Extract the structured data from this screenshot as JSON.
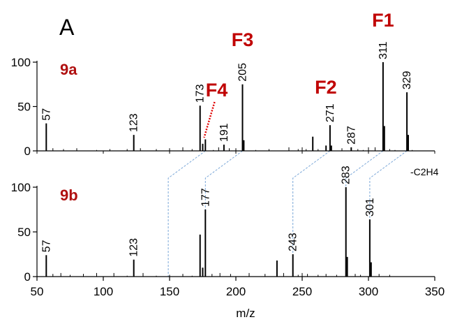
{
  "figure_label": "A",
  "chart_data": {
    "type": "bar",
    "xlabel": "m/z",
    "xlim": [
      50,
      355
    ],
    "x_ticks": [
      50,
      100,
      150,
      200,
      250,
      300,
      350
    ],
    "y_ticks": [
      0,
      50,
      100
    ],
    "ylim": [
      0,
      100
    ],
    "panels": [
      {
        "name": "9a",
        "peaks": [
          {
            "mz": 57,
            "intensity": 31,
            "label": "57"
          },
          {
            "mz": 123,
            "intensity": 18,
            "label": "123"
          },
          {
            "mz": 173,
            "intensity": 51,
            "label": "173"
          },
          {
            "mz": 175,
            "intensity": 8
          },
          {
            "mz": 177,
            "intensity": 13
          },
          {
            "mz": 191,
            "intensity": 7,
            "label": "191"
          },
          {
            "mz": 205,
            "intensity": 75,
            "label": "205"
          },
          {
            "mz": 206,
            "intensity": 12
          },
          {
            "mz": 258,
            "intensity": 16
          },
          {
            "mz": 268,
            "intensity": 6
          },
          {
            "mz": 271,
            "intensity": 29,
            "label": "271"
          },
          {
            "mz": 272,
            "intensity": 6
          },
          {
            "mz": 287,
            "intensity": 4,
            "label": "287"
          },
          {
            "mz": 311,
            "intensity": 100,
            "label": "311"
          },
          {
            "mz": 312,
            "intensity": 28
          },
          {
            "mz": 329,
            "intensity": 66,
            "label": "329"
          },
          {
            "mz": 330,
            "intensity": 18
          }
        ],
        "fragments": [
          {
            "label": "F1",
            "mz": 311
          },
          {
            "label": "F2",
            "mz": 271
          },
          {
            "label": "F3",
            "mz": 205
          },
          {
            "label": "F4",
            "mz": 175
          }
        ]
      },
      {
        "name": "9b",
        "peaks": [
          {
            "mz": 57,
            "intensity": 24,
            "label": "57"
          },
          {
            "mz": 123,
            "intensity": 19,
            "label": "123"
          },
          {
            "mz": 173,
            "intensity": 47
          },
          {
            "mz": 175,
            "intensity": 10
          },
          {
            "mz": 177,
            "intensity": 75,
            "label": "177"
          },
          {
            "mz": 231,
            "intensity": 18
          },
          {
            "mz": 243,
            "intensity": 25,
            "label": "243"
          },
          {
            "mz": 283,
            "intensity": 100,
            "label": "283"
          },
          {
            "mz": 284,
            "intensity": 22
          },
          {
            "mz": 301,
            "intensity": 64,
            "label": "301"
          },
          {
            "mz": 302,
            "intensity": 16
          }
        ]
      }
    ],
    "shift_annotation": "-C2H4",
    "shift_links": [
      [
        177,
        149
      ],
      [
        205,
        177
      ],
      [
        271,
        243
      ],
      [
        311,
        283
      ],
      [
        329,
        301
      ]
    ]
  }
}
